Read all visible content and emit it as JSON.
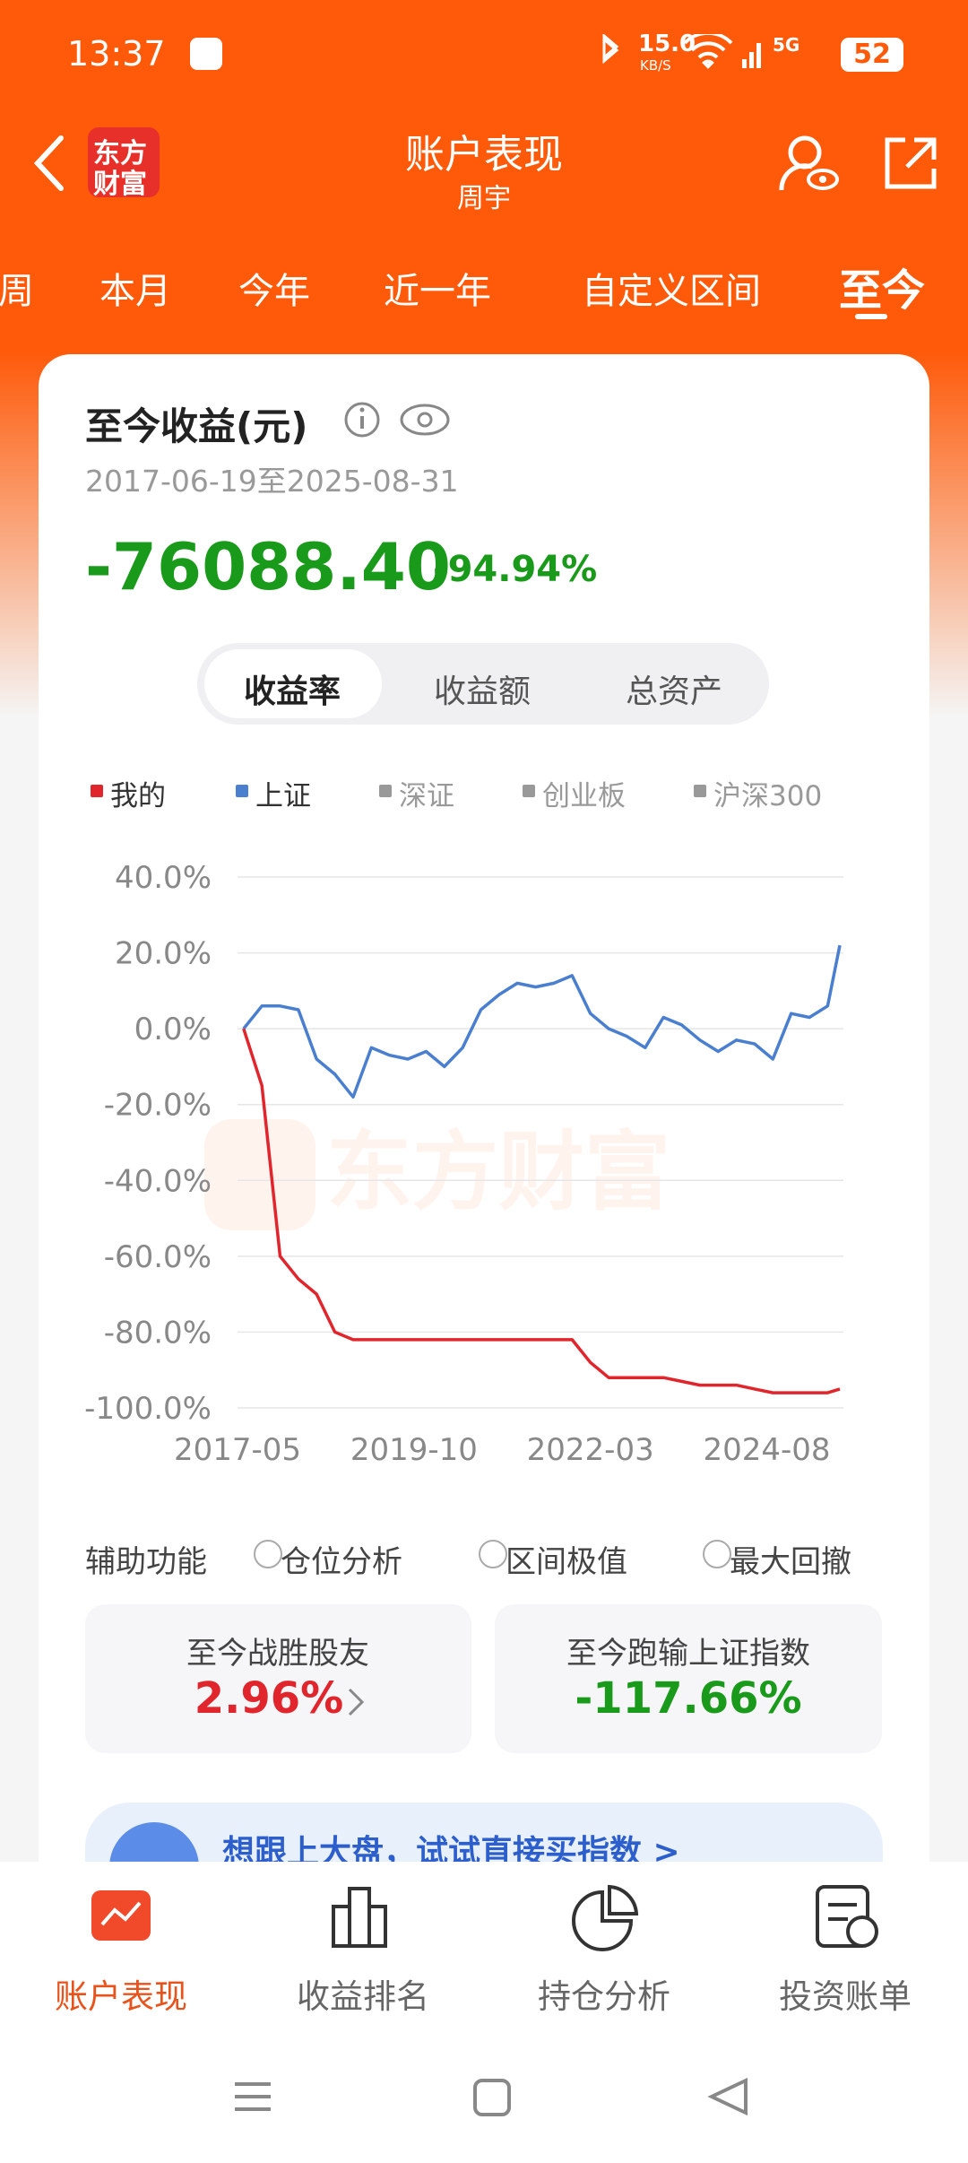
{
  "status_bar": {
    "time": "13:37",
    "speed": "15.0",
    "speed_unit": "KB/S",
    "network": "5G",
    "battery": "52"
  },
  "header": {
    "logo": [
      "东方",
      "财富"
    ],
    "title": "账户表现",
    "subtitle": "周宇"
  },
  "tabs": [
    "周",
    "本月",
    "今年",
    "近一年",
    "自定义区间",
    "至今"
  ],
  "active_tab": 5,
  "summary": {
    "title": "至今收益(元)",
    "period": "2017-06-19至2025-08-31",
    "amount": "-76088.40",
    "rate": "-94.94%"
  },
  "modes": [
    "收益率",
    "收益额",
    "总资产"
  ],
  "active_mode": 0,
  "chart_data": {
    "type": "line",
    "watermark": "东方财富",
    "x": [
      "2017-06",
      "2017-09",
      "2017-12",
      "2018-03",
      "2018-06",
      "2018-09",
      "2018-12",
      "2019-03",
      "2019-06",
      "2019-09",
      "2019-12",
      "2020-03",
      "2020-06",
      "2020-09",
      "2020-12",
      "2021-03",
      "2021-06",
      "2021-09",
      "2021-12",
      "2022-03",
      "2022-06",
      "2022-09",
      "2022-12",
      "2023-03",
      "2023-06",
      "2023-09",
      "2023-12",
      "2024-03",
      "2024-06",
      "2024-09",
      "2024-12",
      "2025-03",
      "2025-06",
      "2025-08"
    ],
    "series": [
      {
        "name": "我的",
        "color": "#e0262c",
        "values": [
          0,
          -15,
          -60,
          -66,
          -70,
          -80,
          -82,
          -82,
          -82,
          -82,
          -82,
          -82,
          -82,
          -82,
          -82,
          -82,
          -82,
          -82,
          -82,
          -88,
          -92,
          -92,
          -92,
          -92,
          -93,
          -94,
          -94,
          -94,
          -95,
          -96,
          -96,
          -96,
          -96,
          -95
        ]
      },
      {
        "name": "上证",
        "color": "#4a7fd0",
        "values": [
          0,
          6,
          6,
          5,
          -8,
          -12,
          -18,
          -5,
          -7,
          -8,
          -6,
          -10,
          -5,
          5,
          9,
          12,
          11,
          12,
          14,
          4,
          0,
          -2,
          -5,
          3,
          1,
          -3,
          -6,
          -3,
          -4,
          -8,
          4,
          3,
          6,
          22
        ]
      }
    ],
    "other_legend": [
      {
        "name": "深证",
        "color": "#999999"
      },
      {
        "name": "创业板",
        "color": "#999999"
      },
      {
        "name": "沪深300",
        "color": "#999999"
      }
    ],
    "xlim": [
      "2017-05",
      "2025-08"
    ],
    "xticks": [
      "2017-05",
      "2019-10",
      "2022-03",
      "2024-08"
    ],
    "ylim": [
      -100,
      40
    ],
    "yticks": [
      {
        "value": 40,
        "label": "40.0%"
      },
      {
        "value": 20,
        "label": "20.0%"
      },
      {
        "value": 0,
        "label": "0.0%"
      },
      {
        "value": -20,
        "label": "-20.0%"
      },
      {
        "value": -40,
        "label": "-40.0%"
      },
      {
        "value": -60,
        "label": "-60.0%"
      },
      {
        "value": -80,
        "label": "-80.0%"
      },
      {
        "value": -100,
        "label": "-100.0%"
      }
    ],
    "grid": true
  },
  "aux": {
    "label": "辅助功能",
    "options": [
      "仓位分析",
      "区间极值",
      "最大回撤"
    ]
  },
  "stats": [
    {
      "label": "至今战胜股友",
      "value": "2.96%",
      "color": "#e0262c"
    },
    {
      "label": "至今跑输上证指数",
      "value": "-117.66%",
      "color": "#1a9a1a"
    }
  ],
  "banner": "想跟上大盘，试试直接买指数 >",
  "nav": [
    "账户表现",
    "收益排名",
    "持仓分析",
    "投资账单"
  ],
  "active_nav": 0
}
